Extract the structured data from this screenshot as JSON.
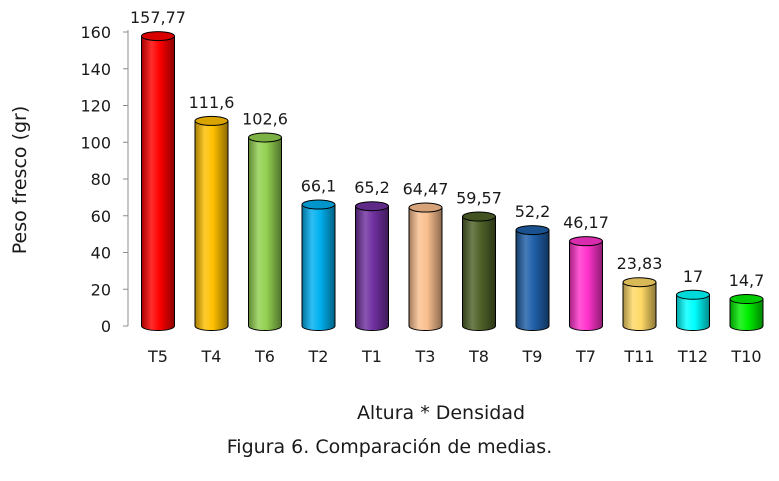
{
  "chart_data": {
    "type": "bar",
    "categories": [
      "T5",
      "T4",
      "T6",
      "T2",
      "T1",
      "T3",
      "T8",
      "T9",
      "T7",
      "T11",
      "T12",
      "T10"
    ],
    "values": [
      157.77,
      111.6,
      102.6,
      66.1,
      65.2,
      64.47,
      59.57,
      52.2,
      46.17,
      23.83,
      17,
      14.7
    ],
    "value_labels": [
      "157,77",
      "111,6",
      "102,6",
      "66,1",
      "65,2",
      "64,47",
      "59,57",
      "52,2",
      "46,17",
      "23,83",
      "17",
      "14,7"
    ],
    "bar_colors": [
      "#ff0000",
      "#ffc000",
      "#92d050",
      "#00b0f0",
      "#7030a0",
      "#fabf8f",
      "#4f6228",
      "#1f5fa8",
      "#ff33cc",
      "#ffd966",
      "#00ffff",
      "#00ee00"
    ],
    "bar_style": "3d-cylinder",
    "xlabel": "Altura * Densidad",
    "ylabel": "Peso fresco (gr)",
    "ylim": [
      0,
      160
    ],
    "yticks": [
      0,
      20,
      40,
      60,
      80,
      100,
      120,
      140,
      160
    ],
    "grid": false,
    "legend": "none"
  },
  "caption": "Figura 6. Comparación de medias."
}
